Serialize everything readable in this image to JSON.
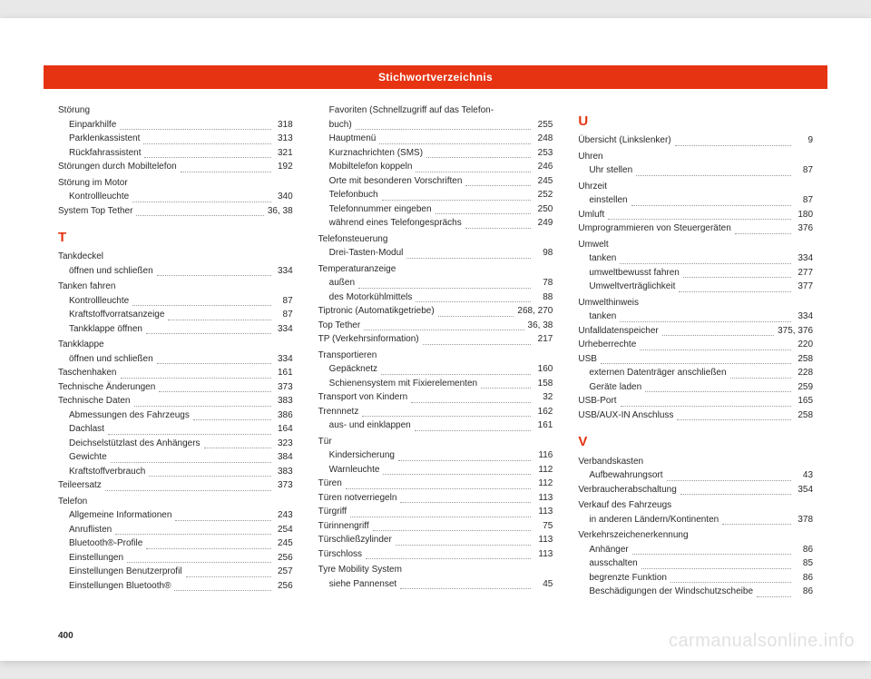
{
  "header": {
    "title": "Stichwortverzeichnis"
  },
  "pageNumber": "400",
  "watermark": "carmanualsonline.info",
  "columns": [
    [
      {
        "type": "heading",
        "text": "Störung"
      },
      {
        "type": "entry",
        "indent": true,
        "label": "Einparkhilfe",
        "page": "318"
      },
      {
        "type": "entry",
        "indent": true,
        "label": "Parklenkassistent",
        "page": "313"
      },
      {
        "type": "entry",
        "indent": true,
        "label": "Rückfahrassistent",
        "page": "321"
      },
      {
        "type": "entry",
        "label": "Störungen durch Mobiltelefon",
        "page": "192"
      },
      {
        "type": "heading",
        "text": "Störung im Motor"
      },
      {
        "type": "entry",
        "indent": true,
        "label": "Kontrollleuchte",
        "page": "340"
      },
      {
        "type": "entry",
        "label": "System Top Tether",
        "page": "36, 38"
      },
      {
        "type": "letter",
        "text": "T"
      },
      {
        "type": "heading",
        "text": "Tankdeckel"
      },
      {
        "type": "entry",
        "indent": true,
        "label": "öffnen und schließen",
        "page": "334"
      },
      {
        "type": "heading",
        "text": "Tanken fahren"
      },
      {
        "type": "entry",
        "indent": true,
        "label": "Kontrollleuchte",
        "page": "87"
      },
      {
        "type": "entry",
        "indent": true,
        "label": "Kraftstoffvorratsanzeige",
        "page": "87"
      },
      {
        "type": "entry",
        "indent": true,
        "label": "Tankklappe öffnen",
        "page": "334"
      },
      {
        "type": "heading",
        "text": "Tankklappe"
      },
      {
        "type": "entry",
        "indent": true,
        "label": "öffnen und schließen",
        "page": "334"
      },
      {
        "type": "entry",
        "label": "Taschenhaken",
        "page": "161"
      },
      {
        "type": "entry",
        "label": "Technische Änderungen",
        "page": "373"
      },
      {
        "type": "entry",
        "label": "Technische Daten",
        "page": "383"
      },
      {
        "type": "entry",
        "indent": true,
        "label": "Abmessungen des Fahrzeugs",
        "page": "386"
      },
      {
        "type": "entry",
        "indent": true,
        "label": "Dachlast",
        "page": "164"
      },
      {
        "type": "entry",
        "indent": true,
        "label": "Deichselstützlast des Anhängers",
        "page": "323"
      },
      {
        "type": "entry",
        "indent": true,
        "label": "Gewichte",
        "page": "384"
      },
      {
        "type": "entry",
        "indent": true,
        "label": "Kraftstoffverbrauch",
        "page": "383"
      },
      {
        "type": "entry",
        "label": "Teileersatz",
        "page": "373"
      },
      {
        "type": "heading",
        "text": "Telefon"
      },
      {
        "type": "entry",
        "indent": true,
        "label": "Allgemeine Informationen",
        "page": "243"
      },
      {
        "type": "entry",
        "indent": true,
        "label": "Anruflisten",
        "page": "254"
      },
      {
        "type": "entry",
        "indent": true,
        "label": "Bluetooth®-Profile",
        "page": "245"
      },
      {
        "type": "entry",
        "indent": true,
        "label": "Einstellungen",
        "page": "256"
      },
      {
        "type": "entry",
        "indent": true,
        "label": "Einstellungen Benutzerprofil",
        "page": "257"
      },
      {
        "type": "entry",
        "indent": true,
        "label": "Einstellungen Bluetooth®",
        "page": "256"
      }
    ],
    [
      {
        "type": "heading",
        "indent": true,
        "text": "Favoriten (Schnellzugriff auf das Telefon-"
      },
      {
        "type": "entry",
        "indent": true,
        "label": "   buch)",
        "page": "255"
      },
      {
        "type": "entry",
        "indent": true,
        "label": "Hauptmenü",
        "page": "248"
      },
      {
        "type": "entry",
        "indent": true,
        "label": "Kurznachrichten (SMS)",
        "page": "253"
      },
      {
        "type": "entry",
        "indent": true,
        "label": "Mobiltelefon koppeln",
        "page": "246"
      },
      {
        "type": "entry",
        "indent": true,
        "label": "Orte mit besonderen Vorschriften",
        "page": "245"
      },
      {
        "type": "entry",
        "indent": true,
        "label": "Telefonbuch",
        "page": "252"
      },
      {
        "type": "entry",
        "indent": true,
        "label": "Telefonnummer eingeben",
        "page": "250"
      },
      {
        "type": "entry",
        "indent": true,
        "label": "während eines Telefongesprächs",
        "page": "249"
      },
      {
        "type": "heading",
        "text": "Telefonsteuerung"
      },
      {
        "type": "entry",
        "indent": true,
        "label": "Drei-Tasten-Modul",
        "page": "98"
      },
      {
        "type": "heading",
        "text": "Temperaturanzeige"
      },
      {
        "type": "entry",
        "indent": true,
        "label": "außen",
        "page": "78"
      },
      {
        "type": "entry",
        "indent": true,
        "label": "des Motorkühlmittels",
        "page": "88"
      },
      {
        "type": "entry",
        "label": "Tiptronic (Automatikgetriebe)",
        "page": "268, 270"
      },
      {
        "type": "entry",
        "label": "Top Tether",
        "page": "36, 38"
      },
      {
        "type": "entry",
        "label": "TP (Verkehrsinformation)",
        "page": "217"
      },
      {
        "type": "heading",
        "text": "Transportieren"
      },
      {
        "type": "entry",
        "indent": true,
        "label": "Gepäcknetz",
        "page": "160"
      },
      {
        "type": "entry",
        "indent": true,
        "label": "Schienensystem mit Fixierelementen",
        "page": "158"
      },
      {
        "type": "entry",
        "label": "Transport von Kindern",
        "page": "32"
      },
      {
        "type": "entry",
        "label": "Trennnetz",
        "page": "162"
      },
      {
        "type": "entry",
        "indent": true,
        "label": "aus- und einklappen",
        "page": "161"
      },
      {
        "type": "heading",
        "text": "Tür"
      },
      {
        "type": "entry",
        "indent": true,
        "label": "Kindersicherung",
        "page": "116"
      },
      {
        "type": "entry",
        "indent": true,
        "label": "Warnleuchte",
        "page": "112"
      },
      {
        "type": "entry",
        "label": "Türen",
        "page": "112"
      },
      {
        "type": "entry",
        "label": "Türen notverriegeln",
        "page": "113"
      },
      {
        "type": "entry",
        "label": "Türgriff",
        "page": "113"
      },
      {
        "type": "entry",
        "label": "Türinnengriff",
        "page": "75"
      },
      {
        "type": "entry",
        "label": "Türschließzylinder",
        "page": "113"
      },
      {
        "type": "entry",
        "label": "Türschloss",
        "page": "113"
      },
      {
        "type": "heading",
        "text": "Tyre Mobility System"
      },
      {
        "type": "entry",
        "indent": true,
        "label": "siehe Pannenset",
        "page": "45"
      }
    ],
    [
      {
        "type": "letter",
        "text": "U"
      },
      {
        "type": "entry",
        "label": "Übersicht (Linkslenker)",
        "page": "9"
      },
      {
        "type": "heading",
        "text": "Uhren"
      },
      {
        "type": "entry",
        "indent": true,
        "label": "Uhr stellen",
        "page": "87"
      },
      {
        "type": "heading",
        "text": "Uhrzeit"
      },
      {
        "type": "entry",
        "indent": true,
        "label": "einstellen",
        "page": "87"
      },
      {
        "type": "entry",
        "label": "Umluft",
        "page": "180"
      },
      {
        "type": "entry",
        "label": "Umprogrammieren von Steuergeräten",
        "page": "376"
      },
      {
        "type": "heading",
        "text": "Umwelt"
      },
      {
        "type": "entry",
        "indent": true,
        "label": "tanken",
        "page": "334"
      },
      {
        "type": "entry",
        "indent": true,
        "label": "umweltbewusst fahren",
        "page": "277"
      },
      {
        "type": "entry",
        "indent": true,
        "label": "Umweltverträglichkeit",
        "page": "377"
      },
      {
        "type": "heading",
        "text": "Umwelthinweis"
      },
      {
        "type": "entry",
        "indent": true,
        "label": "tanken",
        "page": "334"
      },
      {
        "type": "entry",
        "label": "Unfalldatenspeicher",
        "page": "375, 376"
      },
      {
        "type": "entry",
        "label": "Urheberrechte",
        "page": "220"
      },
      {
        "type": "entry",
        "label": "USB",
        "page": "258"
      },
      {
        "type": "entry",
        "indent": true,
        "label": "externen Datenträger anschließen",
        "page": "228"
      },
      {
        "type": "entry",
        "indent": true,
        "label": "Geräte laden",
        "page": "259"
      },
      {
        "type": "entry",
        "label": "USB-Port",
        "page": "165"
      },
      {
        "type": "entry",
        "label": "USB/AUX-IN Anschluss",
        "page": "258"
      },
      {
        "type": "letter",
        "text": "V"
      },
      {
        "type": "heading",
        "text": "Verbandskasten"
      },
      {
        "type": "entry",
        "indent": true,
        "label": "Aufbewahrungsort",
        "page": "43"
      },
      {
        "type": "entry",
        "label": "Verbraucherabschaltung",
        "page": "354"
      },
      {
        "type": "heading",
        "text": "Verkauf des Fahrzeugs"
      },
      {
        "type": "entry",
        "indent": true,
        "label": "in anderen Ländern/Kontinenten",
        "page": "378"
      },
      {
        "type": "heading",
        "text": "Verkehrszeichenerkennung"
      },
      {
        "type": "entry",
        "indent": true,
        "label": "Anhänger",
        "page": "86"
      },
      {
        "type": "entry",
        "indent": true,
        "label": "ausschalten",
        "page": "85"
      },
      {
        "type": "entry",
        "indent": true,
        "label": "begrenzte Funktion",
        "page": "86"
      },
      {
        "type": "entry",
        "indent": true,
        "label": "Beschädigungen der Windschutzscheibe",
        "page": "86"
      }
    ]
  ]
}
